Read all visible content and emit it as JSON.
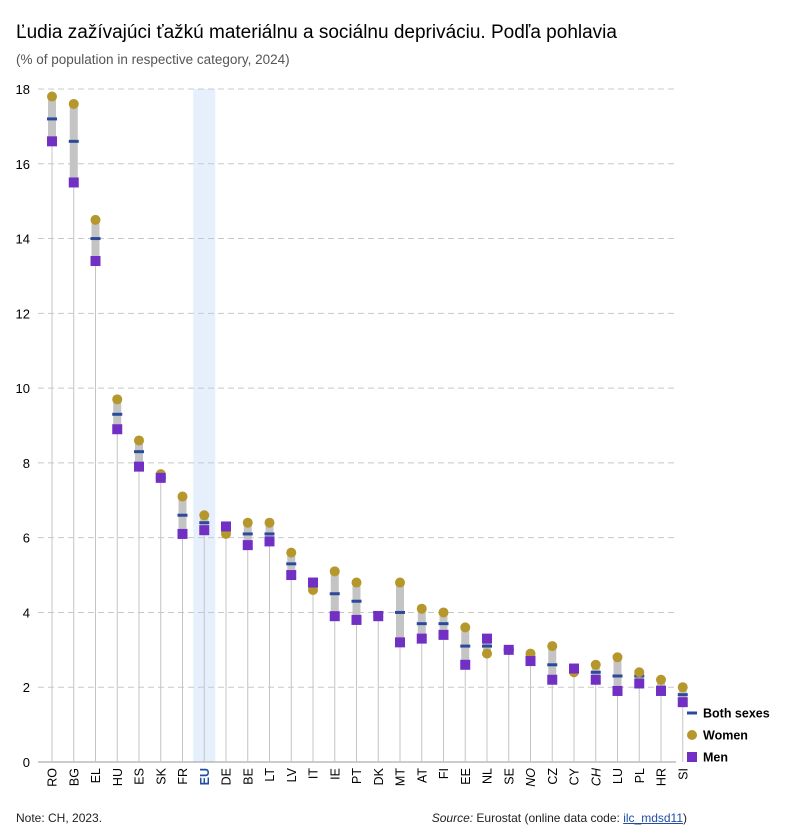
{
  "chart_data": {
    "type": "dot-range",
    "title": "Ľudia zažívajúci ťažkú materiálnu a sociálnu depriváciu. Podľa pohlavia",
    "subtitle": "(% of population in respective category, 2024)",
    "ylim": [
      0,
      18
    ],
    "yticks": [
      0,
      2,
      4,
      6,
      8,
      10,
      12,
      14,
      16,
      18
    ],
    "categories": [
      "RO",
      "BG",
      "EL",
      "HU",
      "ES",
      "SK",
      "FR",
      "EU",
      "DE",
      "BE",
      "LT",
      "LV",
      "IT",
      "IE",
      "PT",
      "DK",
      "MT",
      "AT",
      "FI",
      "EE",
      "NL",
      "SE",
      "NO",
      "CZ",
      "CY",
      "CH",
      "LU",
      "PL",
      "HR",
      "SI"
    ],
    "italic_categories": [
      "NO",
      "CH"
    ],
    "highlight_category": "EU",
    "series": [
      {
        "name": "Both sexes",
        "marker": "dash",
        "color": "#2c4a9c",
        "values": [
          17.2,
          16.6,
          14.0,
          9.3,
          8.3,
          7.6,
          6.6,
          6.4,
          6.2,
          6.1,
          6.1,
          5.3,
          4.7,
          4.5,
          4.3,
          4.0,
          4.0,
          3.7,
          3.7,
          3.1,
          3.1,
          3.0,
          2.8,
          2.6,
          2.5,
          2.4,
          2.3,
          2.3,
          2.0,
          1.8
        ]
      },
      {
        "name": "Women",
        "marker": "circle",
        "color": "#b5972c",
        "values": [
          17.8,
          17.6,
          14.5,
          9.7,
          8.6,
          7.7,
          7.1,
          6.6,
          6.1,
          6.4,
          6.4,
          5.6,
          4.6,
          5.1,
          4.8,
          3.9,
          4.8,
          4.1,
          4.0,
          3.6,
          2.9,
          3.0,
          2.9,
          3.1,
          2.4,
          2.6,
          2.8,
          2.4,
          2.2,
          2.0
        ]
      },
      {
        "name": "Men",
        "marker": "square",
        "color": "#7130c3",
        "values": [
          16.6,
          15.5,
          13.4,
          8.9,
          7.9,
          7.6,
          6.1,
          6.2,
          6.3,
          5.8,
          5.9,
          5.0,
          4.8,
          3.9,
          3.8,
          3.9,
          3.2,
          3.3,
          3.4,
          2.6,
          3.3,
          3.0,
          2.7,
          2.2,
          2.5,
          2.2,
          1.9,
          2.1,
          1.9,
          1.6
        ]
      }
    ]
  },
  "colors": {
    "range_bar": "#c4c4c4",
    "grid": "#c8c8c8",
    "stem": "#c4c4c4",
    "highlight_band": "#e6f0fc",
    "eu_label": "#1f4ea3"
  },
  "footer": {
    "note": "Note: CH, 2023.",
    "source_label": "Source:",
    "source_text": " Eurostat (online data code: ",
    "source_code": "ilc_mdsd11",
    "source_end": ")"
  }
}
